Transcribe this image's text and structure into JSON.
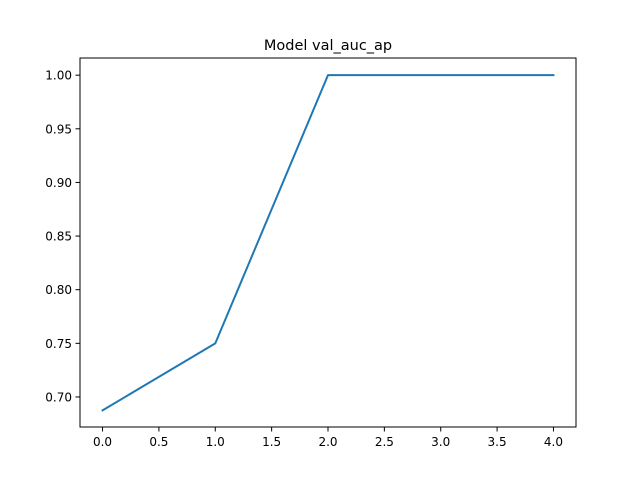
{
  "chart_data": {
    "type": "line",
    "title": "Model val_auc_ap",
    "xlabel": "",
    "ylabel": "",
    "xlim": [
      -0.2,
      4.2
    ],
    "ylim": [
      0.672,
      1.016
    ],
    "xticks": [
      0.0,
      0.5,
      1.0,
      1.5,
      2.0,
      2.5,
      3.0,
      3.5,
      4.0
    ],
    "xtick_labels": [
      "0.0",
      "0.5",
      "1.0",
      "1.5",
      "2.0",
      "2.5",
      "3.0",
      "3.5",
      "4.0"
    ],
    "yticks": [
      0.7,
      0.75,
      0.8,
      0.85,
      0.9,
      0.95,
      1.0
    ],
    "ytick_labels": [
      "0.70",
      "0.75",
      "0.80",
      "0.85",
      "0.90",
      "0.95",
      "1.00"
    ],
    "grid": false,
    "series": [
      {
        "color": "#1f77b4",
        "x": [
          0,
          1,
          2,
          3,
          4
        ],
        "y": [
          0.6875,
          0.75,
          1.0,
          1.0,
          1.0
        ]
      }
    ]
  }
}
